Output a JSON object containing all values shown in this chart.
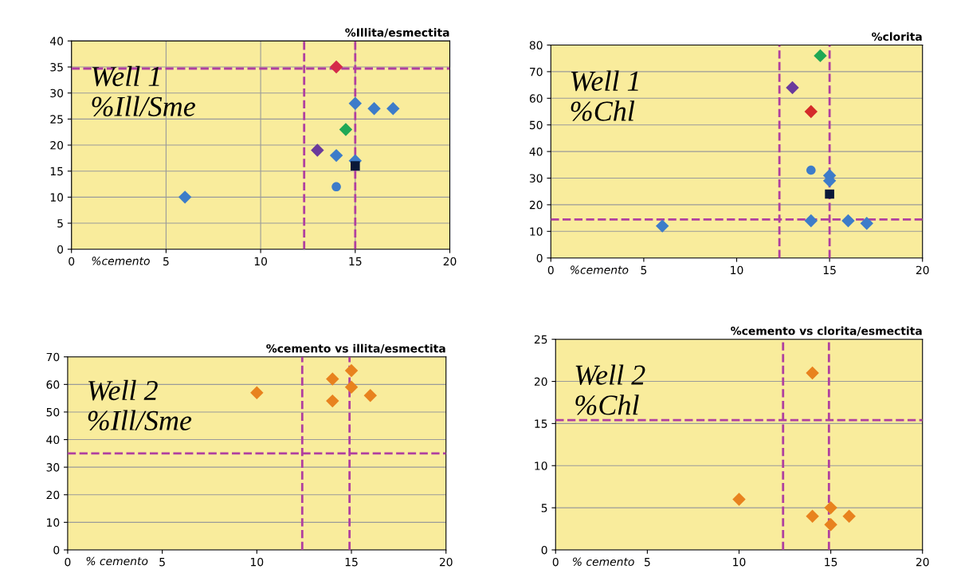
{
  "chart_data": [
    {
      "type": "scatter",
      "title": "%Illita/esmectita",
      "xlabel": "%cemento",
      "annotations": [
        "Well 1\n%Ill/Sme"
      ],
      "xlim": [
        0,
        20
      ],
      "xticks": [
        0,
        5,
        10,
        15,
        20
      ],
      "ylim": [
        0,
        40
      ],
      "yticks": [
        0,
        5,
        10,
        15,
        20,
        25,
        30,
        35,
        40
      ],
      "grid": true,
      "series": [
        {
          "color": "#3d7cc9",
          "marker": "diamond",
          "x": [
            6,
            14,
            15,
            15,
            16,
            17
          ],
          "values": [
            10,
            18,
            17,
            28,
            27,
            27
          ]
        },
        {
          "color": "#3d7cc9",
          "marker": "circle",
          "x": [
            14
          ],
          "values": [
            12
          ]
        },
        {
          "color": "#d42a4a",
          "marker": "diamond",
          "x": [
            14
          ],
          "values": [
            35
          ]
        },
        {
          "color": "#1fa855",
          "marker": "diamond",
          "x": [
            14.5
          ],
          "values": [
            23
          ]
        },
        {
          "color": "#6a3a9c",
          "marker": "diamond",
          "x": [
            13
          ],
          "values": [
            19
          ]
        },
        {
          "color": "#0a1838",
          "marker": "square",
          "x": [
            15
          ],
          "values": [
            16
          ]
        }
      ],
      "ref_lines": [
        {
          "axis": "x",
          "value": 12.3,
          "color": "#b03fa0",
          "line_style": "dashed"
        },
        {
          "axis": "x",
          "value": 15,
          "color": "#b03fa0",
          "line_style": "dashed"
        },
        {
          "axis": "y",
          "value": 34.7,
          "color": "#b03fa0",
          "line_style": "dashed"
        }
      ]
    },
    {
      "type": "scatter",
      "title": "%clorita",
      "xlabel": "%cemento",
      "annotations": [
        "Well 1\n%Chl"
      ],
      "xlim": [
        0,
        20
      ],
      "xticks": [
        0,
        5,
        10,
        15,
        20
      ],
      "ylim": [
        0,
        80
      ],
      "yticks": [
        0,
        10,
        20,
        30,
        40,
        50,
        60,
        70,
        80
      ],
      "grid": "y",
      "series": [
        {
          "color": "#3d7cc9",
          "marker": "diamond",
          "x": [
            6,
            14,
            15,
            15,
            16,
            17
          ],
          "values": [
            12,
            14,
            31,
            29,
            14,
            13
          ]
        },
        {
          "color": "#3d7cc9",
          "marker": "circle",
          "x": [
            14
          ],
          "values": [
            33
          ]
        },
        {
          "color": "#d42a2a",
          "marker": "diamond",
          "x": [
            14
          ],
          "values": [
            55
          ]
        },
        {
          "color": "#1fa855",
          "marker": "diamond",
          "x": [
            14.5
          ],
          "values": [
            76
          ]
        },
        {
          "color": "#6a3a9c",
          "marker": "diamond",
          "x": [
            13
          ],
          "values": [
            64
          ]
        },
        {
          "color": "#0a1838",
          "marker": "square",
          "x": [
            15
          ],
          "values": [
            24
          ]
        }
      ],
      "ref_lines": [
        {
          "axis": "x",
          "value": 12.3,
          "color": "#b03fa0",
          "line_style": "dashed"
        },
        {
          "axis": "x",
          "value": 15,
          "color": "#b03fa0",
          "line_style": "dashed"
        },
        {
          "axis": "y",
          "value": 14.5,
          "color": "#b03fa0",
          "line_style": "dashed"
        }
      ]
    },
    {
      "type": "scatter",
      "title": "%cemento vs illita/esmectita",
      "xlabel": "% cemento",
      "annotations": [
        "Well 2\n%Ill/Sme"
      ],
      "xlim": [
        0,
        20
      ],
      "xticks": [
        0,
        5,
        10,
        15,
        20
      ],
      "ylim": [
        0,
        70
      ],
      "yticks": [
        0,
        10,
        20,
        30,
        40,
        50,
        60,
        70
      ],
      "grid": "y",
      "series": [
        {
          "color": "#e8821e",
          "marker": "diamond",
          "x": [
            10,
            14,
            14,
            15,
            15,
            16
          ],
          "values": [
            57,
            62,
            54,
            65,
            59,
            56
          ]
        }
      ],
      "ref_lines": [
        {
          "axis": "x",
          "value": 12.4,
          "color": "#b03fa0",
          "line_style": "dashed"
        },
        {
          "axis": "x",
          "value": 14.9,
          "color": "#b03fa0",
          "line_style": "dashed"
        },
        {
          "axis": "y",
          "value": 35,
          "color": "#b03fa0",
          "line_style": "dashed"
        }
      ]
    },
    {
      "type": "scatter",
      "title": "%cemento vs clorita/esmectita",
      "xlabel": "% cemento",
      "annotations": [
        "Well 2\n%Chl"
      ],
      "xlim": [
        0,
        20
      ],
      "xticks": [
        0,
        5,
        10,
        15,
        20
      ],
      "ylim": [
        0,
        25
      ],
      "yticks": [
        0,
        5,
        10,
        15,
        20,
        25
      ],
      "grid": "y",
      "series": [
        {
          "color": "#e8821e",
          "marker": "diamond",
          "x": [
            10,
            14,
            14,
            15,
            15,
            16
          ],
          "values": [
            6,
            21,
            4,
            5,
            3,
            4
          ]
        }
      ],
      "ref_lines": [
        {
          "axis": "x",
          "value": 12.4,
          "color": "#b03fa0",
          "line_style": "dashed"
        },
        {
          "axis": "x",
          "value": 14.9,
          "color": "#b03fa0",
          "line_style": "dashed"
        },
        {
          "axis": "y",
          "value": 15.4,
          "color": "#b03fa0",
          "line_style": "dashed"
        }
      ]
    }
  ]
}
